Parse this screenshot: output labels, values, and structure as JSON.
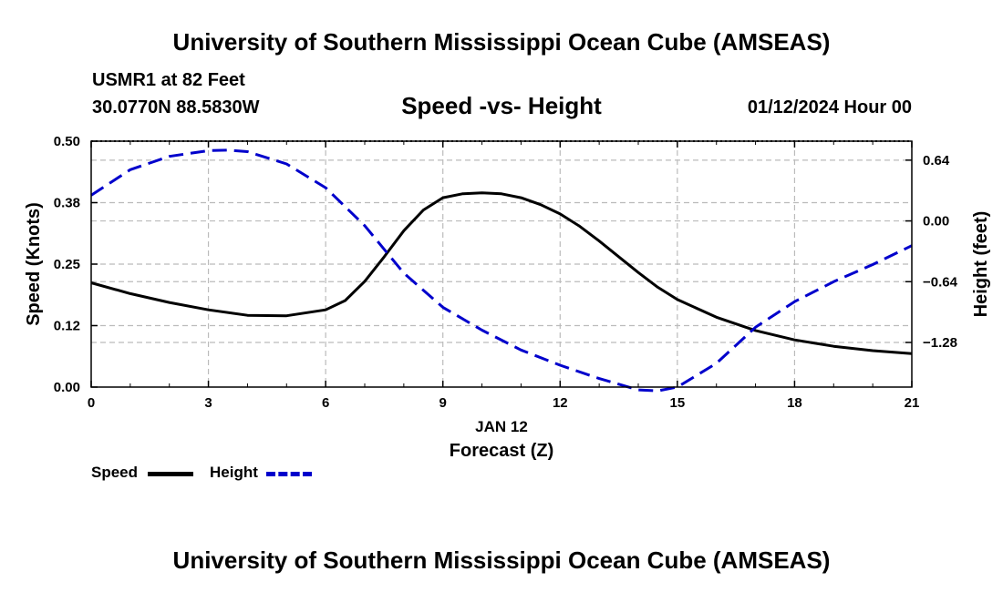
{
  "header": {
    "title": "University of Southern Mississippi Ocean Cube (AMSEAS)",
    "station": "USMR1 at 82 Feet",
    "coords": "30.0770N  88.5830W",
    "subtitle": "Speed -vs- Height",
    "datetime": "01/12/2024 Hour 00"
  },
  "footer": {
    "title": "University of Southern Mississippi Ocean Cube (AMSEAS)"
  },
  "legend": {
    "speed": "Speed",
    "height": "Height"
  },
  "colors": {
    "speed": "#000000",
    "height": "#0000cc",
    "grid": "#bbbbbb"
  },
  "chart_data": {
    "type": "line",
    "title": "Speed -vs- Height",
    "xlabel": "Forecast (Z)",
    "xlabel_date": "JAN 12",
    "ylabel": "Speed (Knots)",
    "y2label": "Height (feet)",
    "xlim": [
      0,
      21
    ],
    "ylim": [
      0,
      0.5
    ],
    "y2lim": [
      -1.75,
      0.84
    ],
    "x_ticks": [
      0,
      3,
      6,
      9,
      12,
      15,
      18,
      21
    ],
    "x_tick_labels": [
      "0",
      "3",
      "6",
      "9",
      "12",
      "15",
      "18",
      "21"
    ],
    "y_ticks": [
      0,
      0.125,
      0.25,
      0.375,
      0.5
    ],
    "y_tick_labels": [
      "0.00",
      "0.12",
      "0.25",
      "0.38",
      "0.50"
    ],
    "y2_ticks": [
      0.64,
      0,
      -0.64,
      -1.28
    ],
    "y2_tick_labels": [
      "0.64",
      "0.00",
      "−0.64",
      "−1.28"
    ],
    "grid": true,
    "series": [
      {
        "name": "Speed",
        "axis": "left",
        "style": "solid",
        "x": [
          0,
          1,
          2,
          3,
          4,
          5,
          6,
          6.5,
          7,
          7.5,
          8,
          8.5,
          9,
          9.5,
          10,
          10.5,
          11,
          11.5,
          12,
          12.5,
          13,
          13.5,
          14,
          14.5,
          15,
          16,
          17,
          18,
          19,
          20,
          21
        ],
        "values": [
          0.212,
          0.19,
          0.172,
          0.157,
          0.146,
          0.145,
          0.157,
          0.176,
          0.215,
          0.265,
          0.318,
          0.36,
          0.385,
          0.393,
          0.395,
          0.393,
          0.385,
          0.371,
          0.352,
          0.327,
          0.297,
          0.265,
          0.233,
          0.203,
          0.178,
          0.142,
          0.115,
          0.096,
          0.083,
          0.074,
          0.068
        ]
      },
      {
        "name": "Height",
        "axis": "right",
        "style": "dashed",
        "x": [
          0,
          1,
          2,
          3,
          3.5,
          4,
          5,
          6,
          7,
          8,
          9,
          10,
          11,
          12,
          13,
          14,
          14.5,
          15,
          16,
          17,
          18,
          19,
          20,
          21
        ],
        "values": [
          0.27,
          0.54,
          0.68,
          0.74,
          0.745,
          0.73,
          0.6,
          0.35,
          -0.05,
          -0.55,
          -0.91,
          -1.15,
          -1.36,
          -1.52,
          -1.66,
          -1.78,
          -1.79,
          -1.75,
          -1.5,
          -1.12,
          -0.85,
          -0.64,
          -0.46,
          -0.26
        ]
      }
    ]
  }
}
